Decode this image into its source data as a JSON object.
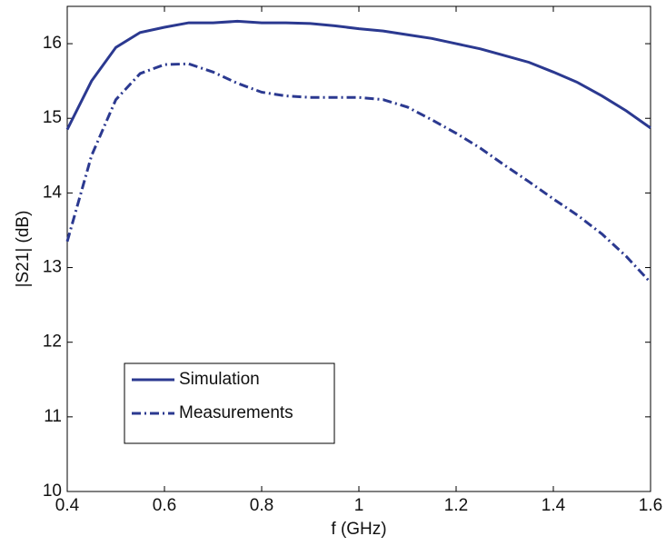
{
  "chart_data": {
    "type": "line",
    "x_label": "f (GHz)",
    "y_label": "|S21| (dB)",
    "x": [
      0.4,
      0.45,
      0.5,
      0.55,
      0.6,
      0.65,
      0.7,
      0.75,
      0.8,
      0.85,
      0.9,
      0.95,
      1.0,
      1.05,
      1.1,
      1.15,
      1.2,
      1.25,
      1.3,
      1.35,
      1.4,
      1.45,
      1.5,
      1.55,
      1.6
    ],
    "series": [
      {
        "name": "Simulation",
        "color": "#2b3990",
        "dash": "solid",
        "values": [
          14.85,
          15.5,
          15.95,
          16.15,
          16.22,
          16.28,
          16.28,
          16.3,
          16.28,
          16.28,
          16.27,
          16.24,
          16.2,
          16.17,
          16.12,
          16.07,
          16.0,
          15.93,
          15.84,
          15.75,
          15.62,
          15.48,
          15.3,
          15.1,
          14.87
        ]
      },
      {
        "name": "Measurements",
        "color": "#2b3990",
        "dash": "dashdot",
        "values": [
          13.35,
          14.5,
          15.25,
          15.6,
          15.72,
          15.73,
          15.62,
          15.47,
          15.35,
          15.3,
          15.28,
          15.28,
          15.28,
          15.25,
          15.15,
          14.98,
          14.8,
          14.6,
          14.37,
          14.15,
          13.92,
          13.7,
          13.45,
          13.15,
          12.8
        ]
      }
    ],
    "xlim": [
      0.4,
      1.6
    ],
    "xticks": [
      0.4,
      0.6,
      0.8,
      1,
      1.2,
      1.4,
      1.6
    ],
    "ylim": [
      10,
      16.5
    ],
    "yticks": [
      10,
      11,
      12,
      13,
      14,
      15,
      16
    ],
    "grid": false,
    "legend": "lower left"
  }
}
